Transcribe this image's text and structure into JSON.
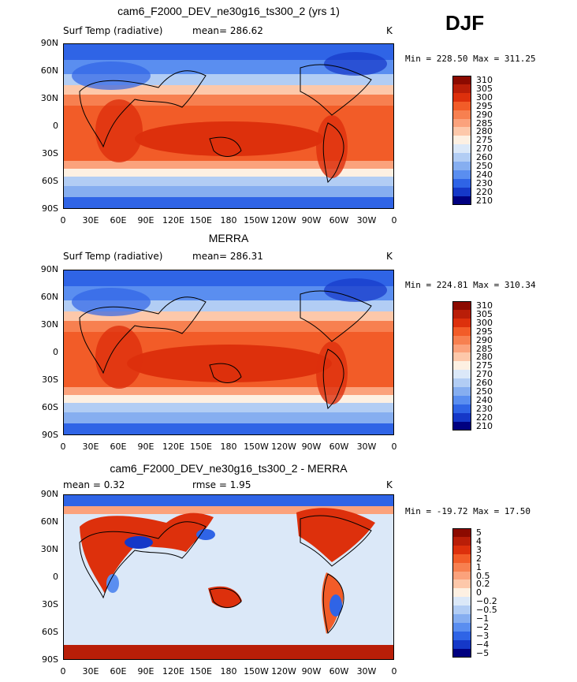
{
  "season": "DJF",
  "x_ticks": [
    "0",
    "30E",
    "60E",
    "90E",
    "120E",
    "150E",
    "180",
    "150W",
    "120W",
    "90W",
    "60W",
    "30W",
    "0"
  ],
  "y_ticks": [
    "90N",
    "60N",
    "30N",
    "0",
    "30S",
    "60S",
    "90S"
  ],
  "chart_data": [
    {
      "type": "heatmap",
      "title": "cam6_F2000_DEV_ne30g16_ts300_2 (yrs 1)",
      "left_label": "Surf Temp (radiative)",
      "center_label": "mean= 286.62",
      "right_label": "K",
      "minmax": "Min = 228.50 Max = 311.25",
      "colorbar": {
        "levels": [
          "310",
          "305",
          "300",
          "295",
          "290",
          "285",
          "280",
          "275",
          "270",
          "260",
          "250",
          "240",
          "230",
          "220",
          "210"
        ],
        "colors": [
          "#8c0a00",
          "#b91e08",
          "#dd300c",
          "#f25c28",
          "#f78050",
          "#fba27c",
          "#fdc8aa",
          "#fdf0e2",
          "#dbe8f8",
          "#b2cdf4",
          "#86aef0",
          "#5a8ef0",
          "#2f64e6",
          "#1538c8",
          "#000080"
        ]
      }
    },
    {
      "type": "heatmap",
      "title": "MERRA",
      "left_label": "Surf Temp (radiative)",
      "center_label": "mean= 286.31",
      "right_label": "K",
      "minmax": "Min = 224.81 Max = 310.34",
      "colorbar": {
        "levels": [
          "310",
          "305",
          "300",
          "295",
          "290",
          "285",
          "280",
          "275",
          "270",
          "260",
          "250",
          "240",
          "230",
          "220",
          "210"
        ],
        "colors": [
          "#8c0a00",
          "#b91e08",
          "#dd300c",
          "#f25c28",
          "#f78050",
          "#fba27c",
          "#fdc8aa",
          "#fdf0e2",
          "#dbe8f8",
          "#b2cdf4",
          "#86aef0",
          "#5a8ef0",
          "#2f64e6",
          "#1538c8",
          "#000080"
        ]
      }
    },
    {
      "type": "heatmap",
      "title": "cam6_F2000_DEV_ne30g16_ts300_2 - MERRA",
      "left_label": "mean =    0.32",
      "center_label": "rmse =    1.95",
      "right_label": "K",
      "minmax": "Min = -19.72 Max =  17.50",
      "colorbar": {
        "levels": [
          "5",
          "4",
          "3",
          "2",
          "1",
          "0.5",
          "0.2",
          "0",
          "−0.2",
          "−0.5",
          "−1",
          "−2",
          "−3",
          "−4",
          "−5"
        ],
        "colors": [
          "#8c0a00",
          "#b91e08",
          "#dd300c",
          "#f25c28",
          "#f78050",
          "#fba27c",
          "#fdc8aa",
          "#fdf0e2",
          "#dbe8f8",
          "#b2cdf4",
          "#86aef0",
          "#5a8ef0",
          "#2f64e6",
          "#1538c8",
          "#000080"
        ]
      }
    }
  ]
}
